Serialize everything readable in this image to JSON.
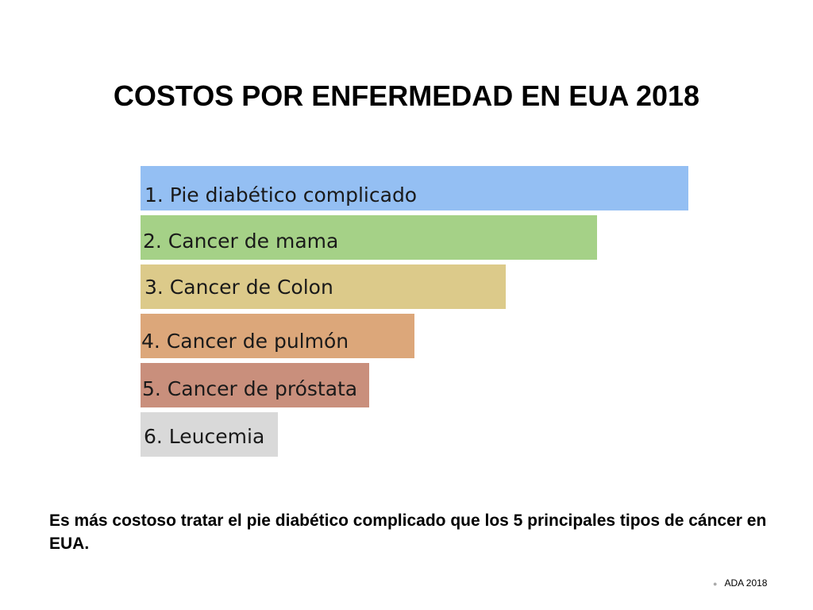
{
  "slide": {
    "title": "COSTOS POR ENFERMEDAD EN EUA 2018",
    "caption": "Es más costoso tratar el pie diabético complicado que los 5 principales tipos de cáncer en EUA.",
    "source": "ADA 2018"
  },
  "chart_data": {
    "type": "bar",
    "orientation": "horizontal",
    "categories": [
      "1. Pie diabético complicado",
      "2. Cancer de mama",
      "3. Cancer de Colon",
      "4. Cancer de pulmón",
      "5. Cancer de próstata",
      "6. Leucemia"
    ],
    "values": [
      6,
      5,
      4,
      3,
      2.5,
      1.5
    ],
    "colors": [
      "#94bff3",
      "#a5d187",
      "#dcca8a",
      "#dca77a",
      "#c98f7c",
      "#d9d9d9"
    ]
  }
}
